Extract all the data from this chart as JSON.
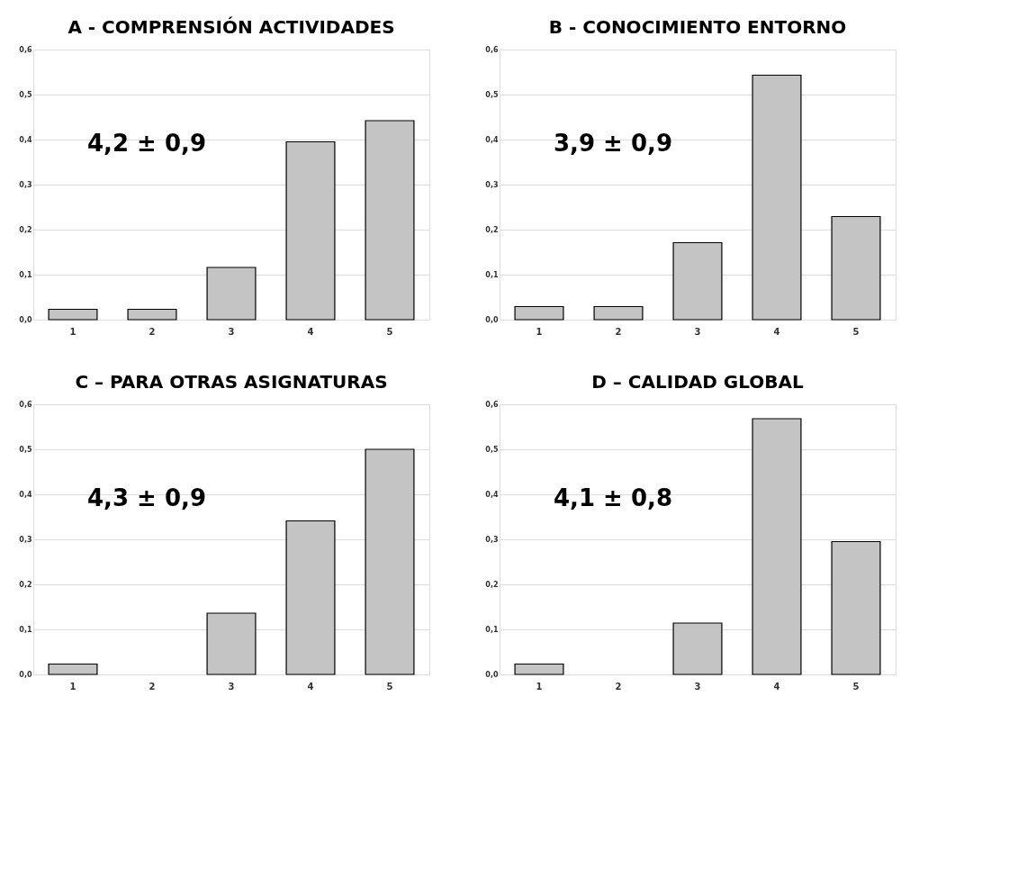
{
  "chart_data": [
    {
      "type": "bar",
      "title": "A - COMPRENSIÓN ACTIVIDADES",
      "categories": [
        "1",
        "2",
        "3",
        "4",
        "5"
      ],
      "values": [
        0.023,
        0.023,
        0.116,
        0.395,
        0.442
      ],
      "color": "#c4c4c4",
      "annotations": [
        "4,2 ± 0,9"
      ],
      "ylim": [
        0,
        0.6
      ],
      "yticks": [
        {
          "value": 0,
          "label": "0,0"
        },
        {
          "value": 0.1,
          "label": "0,1"
        },
        {
          "value": 0.2,
          "label": "0,2"
        },
        {
          "value": 0.3,
          "label": "0,3"
        },
        {
          "value": 0.4,
          "label": "0,4"
        },
        {
          "value": 0.5,
          "label": "0,5"
        },
        {
          "value": 0.6,
          "label": "0,6"
        }
      ],
      "grid": "y"
    },
    {
      "type": "bar",
      "title": "B - CONOCIMIENTO ENTORNO",
      "categories": [
        "1",
        "2",
        "3",
        "4",
        "5"
      ],
      "values": [
        0.029,
        0.029,
        0.171,
        0.543,
        0.229
      ],
      "color": "#c4c4c4",
      "annotations": [
        "3,9 ± 0,9"
      ],
      "ylim": [
        0,
        0.6
      ],
      "yticks": [
        {
          "value": 0,
          "label": "0,0"
        },
        {
          "value": 0.1,
          "label": "0,1"
        },
        {
          "value": 0.2,
          "label": "0,2"
        },
        {
          "value": 0.3,
          "label": "0,3"
        },
        {
          "value": 0.4,
          "label": "0,4"
        },
        {
          "value": 0.5,
          "label": "0,5"
        },
        {
          "value": 0.6,
          "label": "0,6"
        }
      ],
      "grid": "y"
    },
    {
      "type": "bar",
      "title": "C – PARA OTRAS ASIGNATURAS",
      "categories": [
        "1",
        "2",
        "3",
        "4",
        "5"
      ],
      "values": [
        0.023,
        0,
        0.136,
        0.341,
        0.5
      ],
      "color": "#c4c4c4",
      "annotations": [
        "4,3 ± 0,9"
      ],
      "ylim": [
        0,
        0.6
      ],
      "yticks": [
        {
          "value": 0,
          "label": "0,0"
        },
        {
          "value": 0.1,
          "label": "0,1"
        },
        {
          "value": 0.2,
          "label": "0,2"
        },
        {
          "value": 0.3,
          "label": "0,3"
        },
        {
          "value": 0.4,
          "label": "0,4"
        },
        {
          "value": 0.5,
          "label": "0,5"
        },
        {
          "value": 0.6,
          "label": "0,6"
        }
      ],
      "grid": "y"
    },
    {
      "type": "bar",
      "title": "D – CALIDAD GLOBAL",
      "categories": [
        "1",
        "2",
        "3",
        "4",
        "5"
      ],
      "values": [
        0.023,
        0,
        0.114,
        0.568,
        0.295
      ],
      "color": "#c4c4c4",
      "annotations": [
        "4,1 ± 0,8"
      ],
      "ylim": [
        0,
        0.6
      ],
      "yticks": [
        {
          "value": 0,
          "label": "0,0"
        },
        {
          "value": 0.1,
          "label": "0,1"
        },
        {
          "value": 0.2,
          "label": "0,2"
        },
        {
          "value": 0.3,
          "label": "0,3"
        },
        {
          "value": 0.4,
          "label": "0,4"
        },
        {
          "value": 0.5,
          "label": "0,5"
        },
        {
          "value": 0.6,
          "label": "0,6"
        }
      ],
      "grid": "y"
    }
  ]
}
